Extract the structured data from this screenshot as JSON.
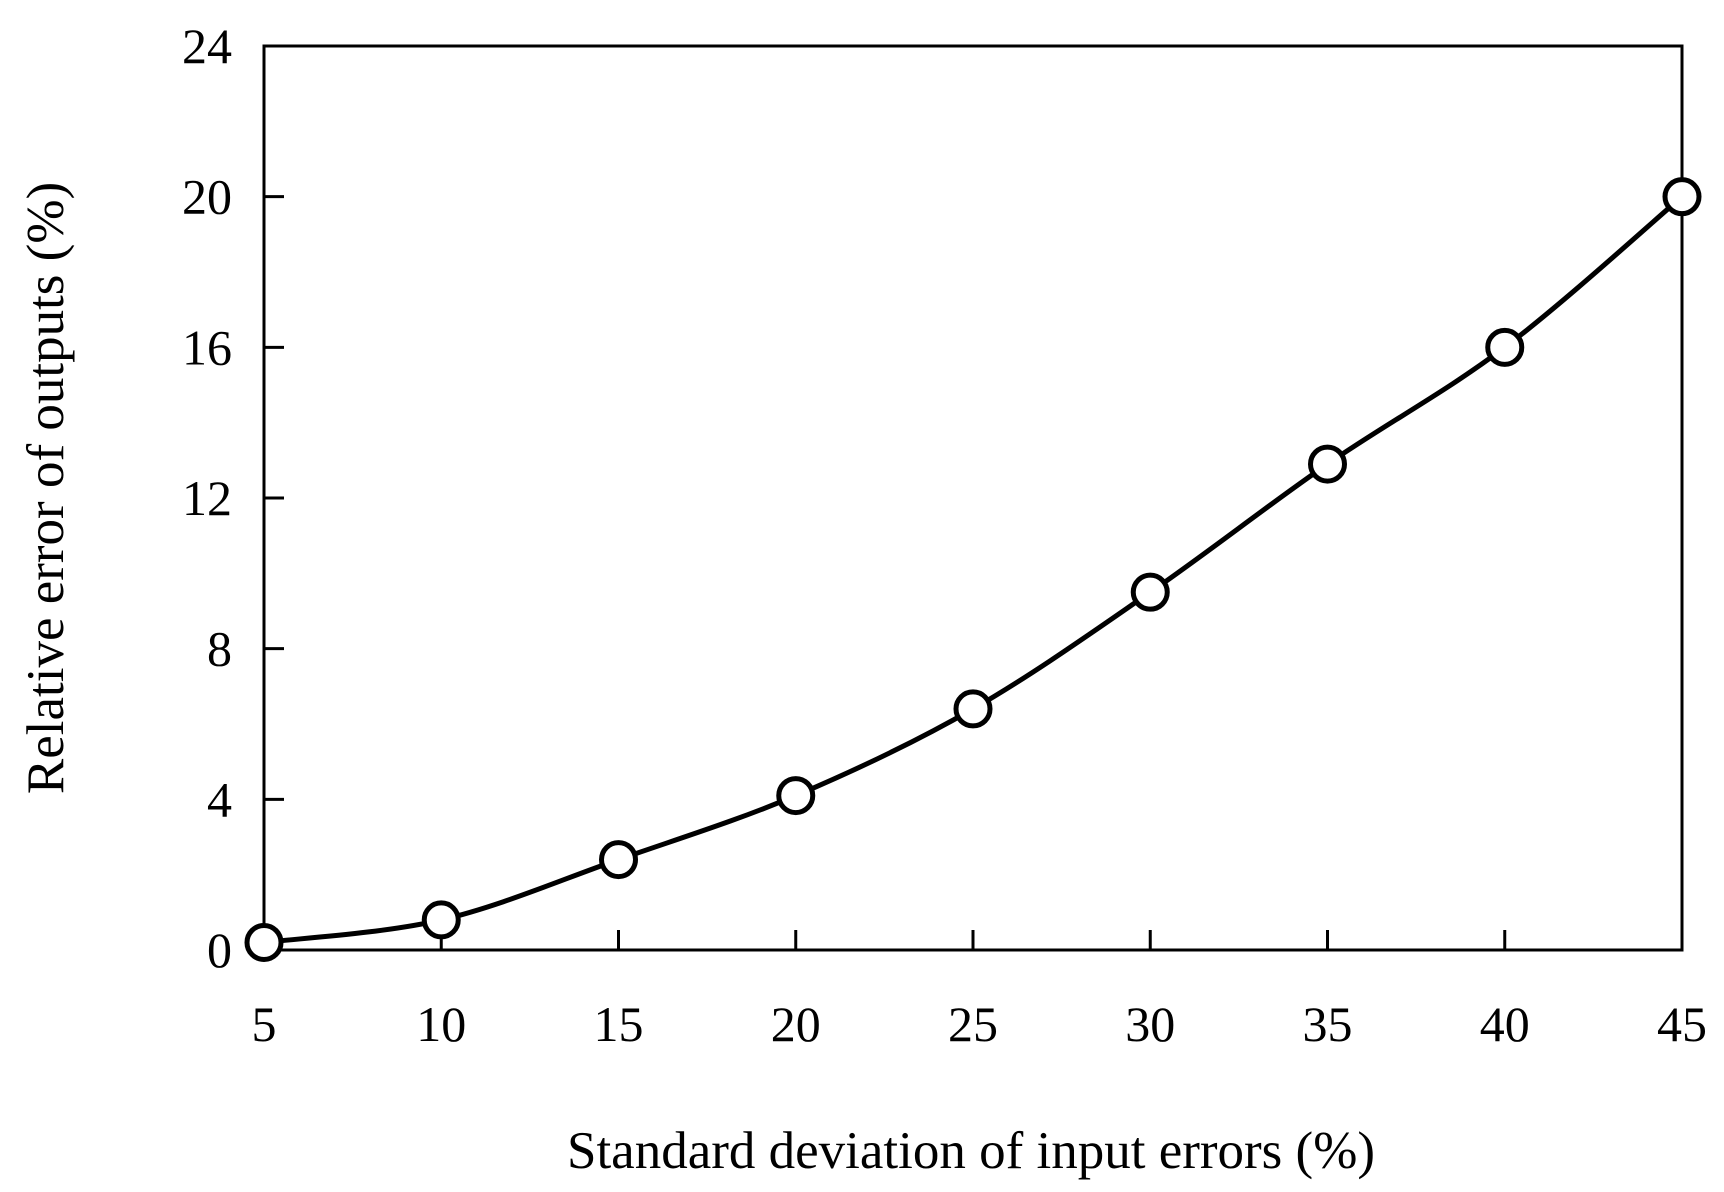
{
  "chart_data": {
    "type": "line",
    "xlabel": "Standard deviation of input errors (%)",
    "ylabel": "Relative error of outputs (%)",
    "xlim": [
      5,
      45
    ],
    "ylim": [
      0,
      24
    ],
    "x_ticks": [
      5,
      10,
      15,
      20,
      25,
      30,
      35,
      40,
      45
    ],
    "x_tick_labels": [
      "5",
      "10",
      "15",
      "20",
      "25",
      "30",
      "35",
      "40",
      "45"
    ],
    "y_ticks": [
      0,
      4,
      8,
      12,
      16,
      20,
      24
    ],
    "y_tick_labels": [
      "0",
      "4",
      "8",
      "12",
      "16",
      "20",
      "24"
    ],
    "grid": false,
    "legend": "none",
    "marker": "open-circle",
    "line_style": "smooth",
    "line_color": "#000000",
    "series": [
      {
        "x": [
          5,
          10,
          15,
          20,
          25,
          30,
          35,
          40,
          45
        ],
        "y": [
          0.2,
          0.8,
          2.4,
          4.1,
          6.4,
          9.5,
          12.9,
          16.0,
          20.0
        ]
      }
    ]
  }
}
